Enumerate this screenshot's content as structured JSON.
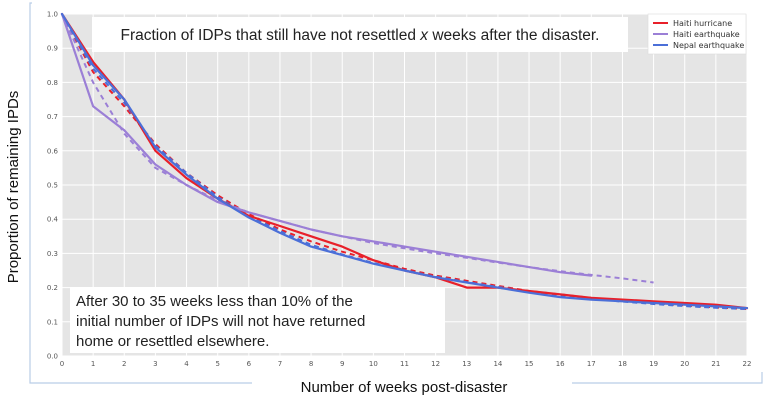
{
  "chart_data": {
    "type": "line",
    "title": "Fraction of IDPs that still have not resettled x weeks after the disaster.",
    "xlabel": "Number of weeks post-disaster",
    "ylabel": "Proportion of remaining IPDs",
    "xlim": [
      0,
      22
    ],
    "ylim": [
      0.0,
      1.0
    ],
    "xticks": [
      0,
      1,
      2,
      3,
      4,
      5,
      6,
      7,
      8,
      9,
      10,
      11,
      12,
      13,
      14,
      15,
      16,
      17,
      18,
      19,
      20,
      21,
      22
    ],
    "yticks": [
      0.0,
      0.1,
      0.2,
      0.3,
      0.4,
      0.5,
      0.6,
      0.7,
      0.8,
      0.9,
      1.0
    ],
    "grid": true,
    "legend_position": "top-right",
    "annotation": "After 30 to 35 weeks less than 10% of the initial number of IDPs will not have returned home or resettled elsewhere.",
    "series": [
      {
        "name": "Haiti hurricane",
        "color": "#e8202a",
        "x": [
          0,
          1,
          2,
          3,
          4,
          5,
          6,
          7,
          8,
          9,
          10,
          11,
          12,
          13,
          14,
          15,
          16,
          17,
          18,
          19,
          20,
          21,
          22
        ],
        "y": [
          1.0,
          0.86,
          0.75,
          0.6,
          0.52,
          0.46,
          0.41,
          0.38,
          0.35,
          0.32,
          0.28,
          0.25,
          0.23,
          0.2,
          0.2,
          0.19,
          0.18,
          0.17,
          0.165,
          0.16,
          0.155,
          0.15,
          0.14
        ]
      },
      {
        "name": "Haiti earthquake",
        "color": "#9b7fd6",
        "x": [
          0,
          1,
          2,
          3,
          4,
          5,
          6,
          7,
          8,
          9,
          10,
          11,
          12,
          13,
          14,
          15,
          16,
          17
        ],
        "y": [
          1.0,
          0.73,
          0.66,
          0.56,
          0.5,
          0.45,
          0.42,
          0.395,
          0.37,
          0.35,
          0.335,
          0.32,
          0.305,
          0.29,
          0.275,
          0.26,
          0.245,
          0.235
        ]
      },
      {
        "name": "Nepal earthquake",
        "color": "#4b6fd8",
        "x": [
          0,
          1,
          2,
          3,
          4,
          5,
          6,
          7,
          8,
          9,
          10,
          11,
          12,
          13,
          14,
          15,
          16,
          17,
          18,
          19,
          20,
          21,
          22
        ],
        "y": [
          1.0,
          0.85,
          0.75,
          0.61,
          0.53,
          0.46,
          0.405,
          0.36,
          0.32,
          0.295,
          0.27,
          0.25,
          0.23,
          0.215,
          0.2,
          0.185,
          0.172,
          0.165,
          0.16,
          0.155,
          0.15,
          0.145,
          0.14
        ]
      }
    ],
    "fit_lines": [
      {
        "color": "#e8202a",
        "x": [
          0,
          1,
          2,
          3,
          4,
          5,
          6,
          7,
          8,
          9,
          10,
          11,
          12,
          13,
          14,
          15,
          16,
          17,
          18,
          19,
          20,
          21,
          22
        ],
        "y": [
          1.0,
          0.83,
          0.73,
          0.62,
          0.535,
          0.47,
          0.415,
          0.37,
          0.335,
          0.305,
          0.28,
          0.255,
          0.235,
          0.22,
          0.205,
          0.19,
          0.18,
          0.17,
          0.162,
          0.155,
          0.148,
          0.142,
          0.137
        ]
      },
      {
        "color": "#9b7fd6",
        "x": [
          0,
          1,
          2,
          3,
          4,
          5,
          6,
          7,
          8,
          9,
          10,
          11,
          12,
          13,
          14,
          15,
          16,
          17,
          18,
          19
        ],
        "y": [
          1.0,
          0.8,
          0.65,
          0.55,
          0.5,
          0.455,
          0.42,
          0.395,
          0.37,
          0.35,
          0.33,
          0.315,
          0.3,
          0.287,
          0.273,
          0.26,
          0.248,
          0.237,
          0.227,
          0.215
        ]
      },
      {
        "color": "#4b6fd8",
        "x": [
          0,
          1,
          2,
          3,
          4,
          5,
          6,
          7,
          8,
          9,
          10,
          11,
          12,
          13,
          14,
          15,
          16,
          17,
          18,
          19,
          20,
          21,
          22
        ],
        "y": [
          1.0,
          0.84,
          0.74,
          0.615,
          0.535,
          0.465,
          0.41,
          0.365,
          0.325,
          0.297,
          0.272,
          0.251,
          0.232,
          0.216,
          0.202,
          0.189,
          0.177,
          0.167,
          0.159,
          0.152,
          0.146,
          0.141,
          0.137
        ]
      }
    ]
  }
}
